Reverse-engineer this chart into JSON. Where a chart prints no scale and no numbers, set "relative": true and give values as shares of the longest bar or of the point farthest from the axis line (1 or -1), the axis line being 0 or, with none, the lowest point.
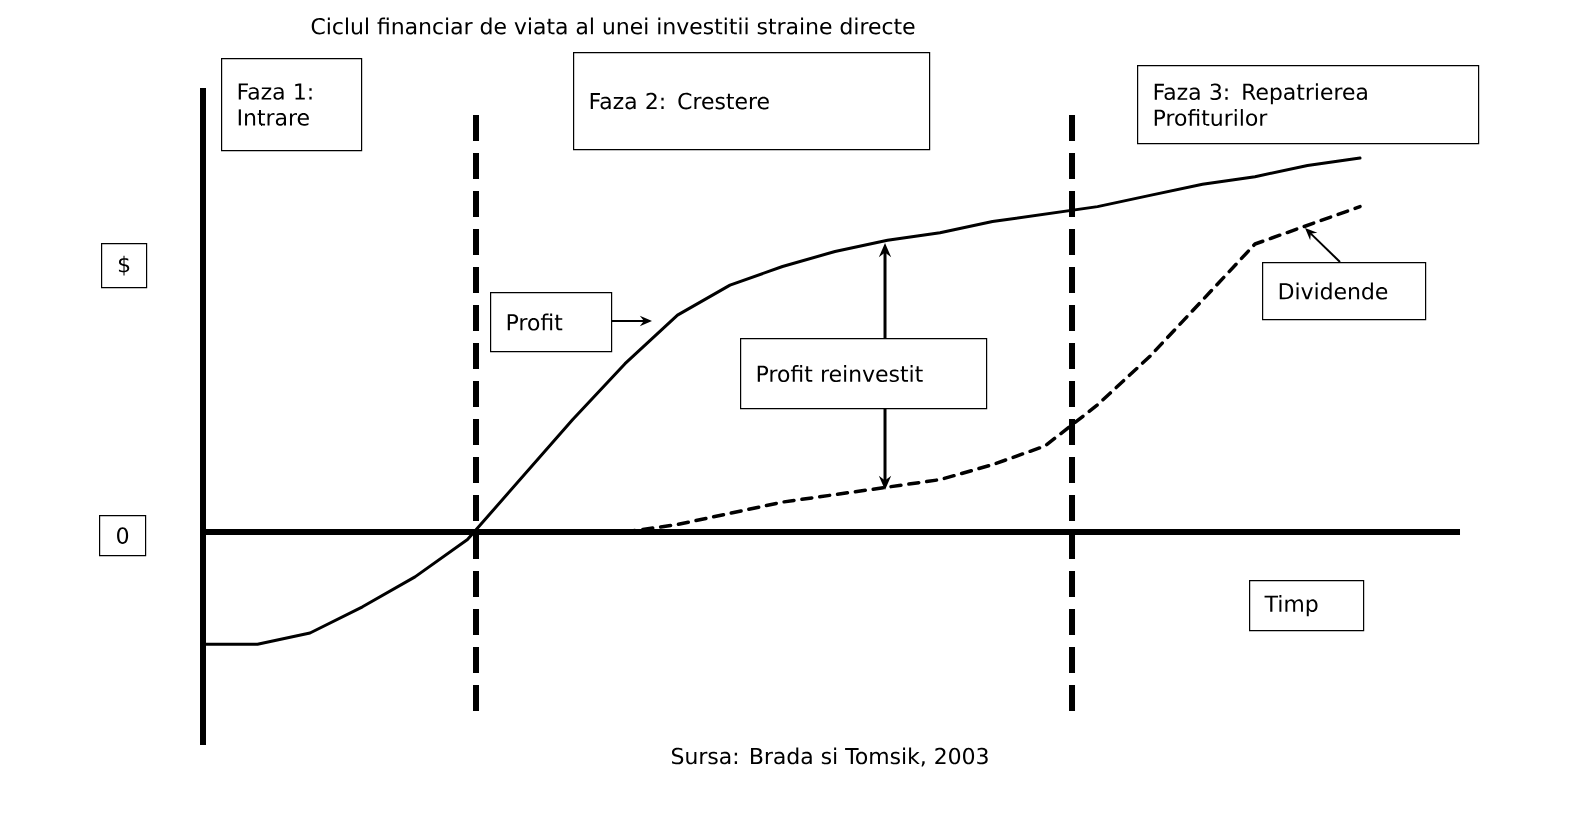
{
  "chart_data": {
    "type": "line",
    "title": "Ciclul financiar de viata al unei investitii straine directe",
    "xlabel": "Timp",
    "ylabel": "$",
    "relative": true,
    "categories": [
      null,
      null,
      null,
      null,
      null,
      null,
      null,
      null,
      null,
      null,
      null,
      null,
      null,
      null,
      null,
      null,
      null,
      null,
      null,
      null,
      null,
      null,
      null
    ],
    "series": [
      {
        "name": "Profit",
        "color": "#000000",
        "line_style": "solid",
        "values": [
          -0.3,
          -0.3,
          -0.27,
          -0.2,
          -0.12,
          -0.02,
          0.14,
          0.3,
          0.45,
          0.58,
          0.66,
          0.71,
          0.75,
          0.78,
          0.8,
          0.83,
          0.85,
          0.87,
          0.9,
          0.93,
          0.95,
          0.98,
          1.0
        ]
      },
      {
        "name": "Dividende",
        "color": "#000000",
        "line_style": "dashed",
        "values": [
          null,
          null,
          null,
          null,
          null,
          null,
          null,
          null,
          0.0,
          0.02,
          0.05,
          0.08,
          0.1,
          0.12,
          0.14,
          0.18,
          0.23,
          0.34,
          0.47,
          0.62,
          0.77,
          0.82,
          0.87
        ]
      }
    ],
    "annotations": [
      "Faza 1: Intrare",
      "Faza 2: Crestere",
      "Faza 3: Repatrierea Profiturilor",
      "Profit reinvestit",
      "Sursa:  Brada si Tomsik, 2003",
      "0"
    ]
  }
}
